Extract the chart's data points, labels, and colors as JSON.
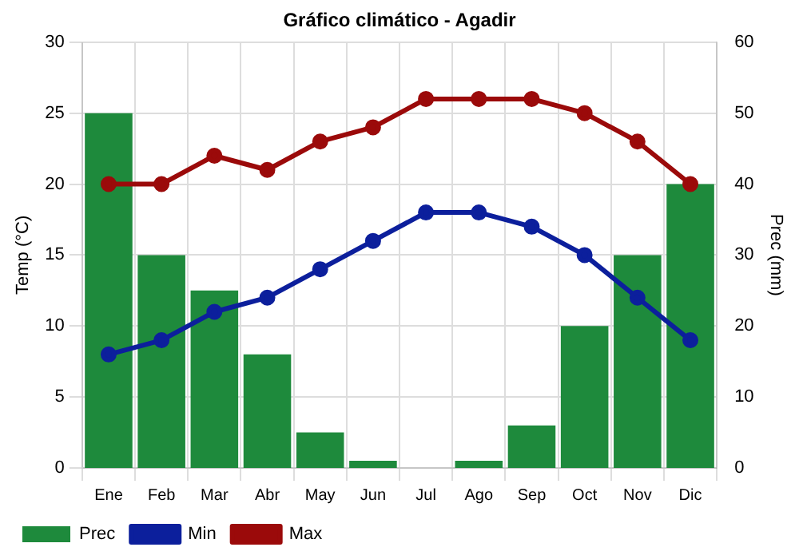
{
  "chart_data": {
    "type": "bar",
    "title": "Gráfico climático - Agadir",
    "ylabel": "Temp (°C)",
    "y2label": "Prec (mm)",
    "categories": [
      "Ene",
      "Feb",
      "Mar",
      "Abr",
      "May",
      "Jun",
      "Jul",
      "Ago",
      "Sep",
      "Oct",
      "Nov",
      "Dic"
    ],
    "series": [
      {
        "name": "Prec",
        "axis": "y2",
        "color": "#1e8a3c",
        "values": [
          50,
          30,
          25,
          16,
          5,
          1,
          0,
          1,
          6,
          20,
          30,
          40
        ]
      },
      {
        "name": "Min",
        "type": "line",
        "color": "#0c1f9c",
        "values": [
          8,
          9,
          11,
          12,
          14,
          16,
          18,
          18,
          17,
          15,
          12,
          9
        ]
      },
      {
        "name": "Max",
        "type": "line",
        "color": "#9b0a0a",
        "values": [
          20,
          20,
          22,
          21,
          23,
          24,
          26,
          26,
          26,
          25,
          23,
          20
        ]
      }
    ],
    "ylim": [
      0,
      30
    ],
    "yticks": [
      0,
      5,
      10,
      15,
      20,
      25,
      30
    ],
    "y2lim": [
      0,
      60
    ],
    "y2ticks": [
      0,
      10,
      20,
      30,
      40,
      50,
      60
    ],
    "grid": true,
    "legend": "bottom left",
    "marker": "circle",
    "line_style": "solid"
  }
}
